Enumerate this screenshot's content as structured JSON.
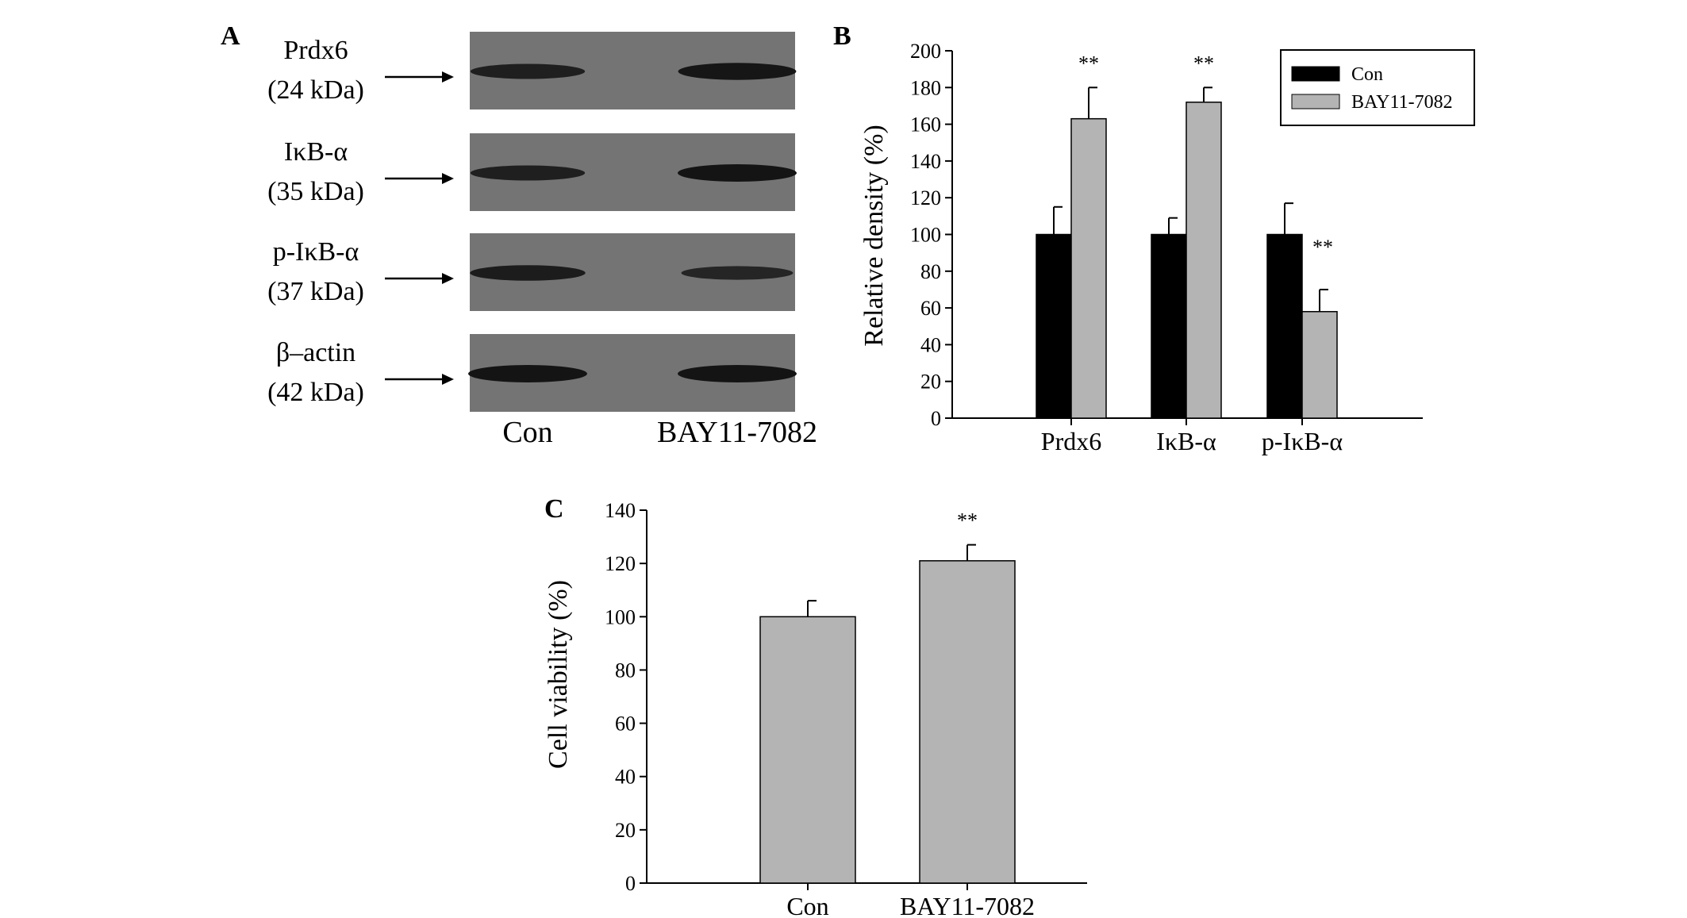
{
  "panels": {
    "a": {
      "label": "A"
    },
    "b": {
      "label": "B"
    },
    "c": {
      "label": "C"
    }
  },
  "blot": {
    "bands": [
      {
        "name": "Prdx6",
        "kda": "(24 kDa)",
        "intensity": [
          0.75,
          0.95
        ]
      },
      {
        "name": "IκB-α",
        "kda": "(35 kDa)",
        "intensity": [
          0.75,
          1.0
        ]
      },
      {
        "name": "p-IκB-α",
        "kda": "(37 kDa)",
        "intensity": [
          0.8,
          0.6
        ]
      },
      {
        "name": "β–actin",
        "kda": "(42 kDa)",
        "intensity": [
          1.0,
          1.0
        ]
      }
    ],
    "lanes": [
      "Con",
      "BAY11-7082"
    ]
  },
  "colors": {
    "con": "#000000",
    "bay": "#b4b4b4",
    "blot_bg": "#747474",
    "band": "#141414"
  },
  "chart_data": [
    {
      "type": "bar",
      "panel": "B",
      "categories": [
        "Prdx6",
        "IκB-α",
        "p-IκB-α"
      ],
      "series": [
        {
          "name": "Con",
          "values": [
            100,
            100,
            100
          ],
          "errors": [
            15,
            9,
            17
          ]
        },
        {
          "name": "BAY11-7082",
          "values": [
            163,
            172,
            58
          ],
          "errors": [
            17,
            8,
            12
          ]
        }
      ],
      "significance": [
        "**",
        "**",
        "**"
      ],
      "xlabel": "",
      "ylabel": "Relative density (%)",
      "ylim": [
        0,
        200
      ],
      "yticks": [
        0,
        20,
        40,
        60,
        80,
        100,
        120,
        140,
        160,
        180,
        200
      ],
      "legend": "top-right",
      "grid": false
    },
    {
      "type": "bar",
      "panel": "C",
      "categories": [
        "Con",
        "BAY11-7082"
      ],
      "series": [
        {
          "values": [
            100,
            121
          ],
          "errors": [
            6,
            6
          ]
        }
      ],
      "significance": [
        "",
        "**"
      ],
      "xlabel": "",
      "ylabel": "Cell viability (%)",
      "ylim": [
        0,
        140
      ],
      "yticks": [
        0,
        20,
        40,
        60,
        80,
        100,
        120,
        140
      ],
      "grid": false
    }
  ]
}
